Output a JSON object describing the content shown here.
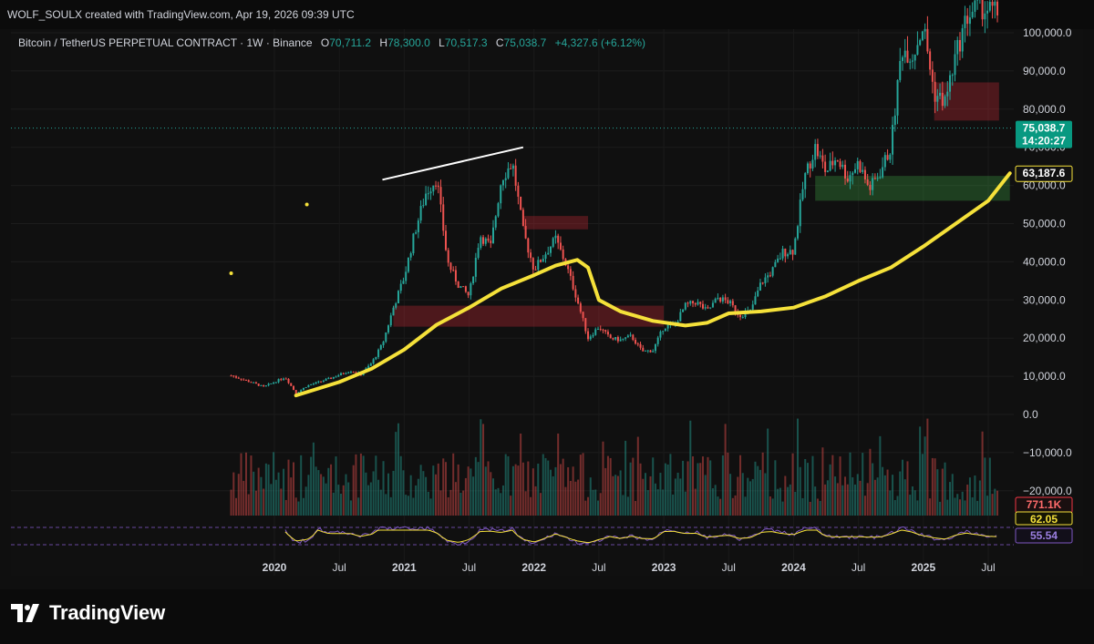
{
  "header": {
    "creator_line": "WOLF_SOULX created with TradingView.com, Apr 19, 2026 09:39 UTC"
  },
  "legend": {
    "symbol": "Bitcoin / TetherUS PERPETUAL CONTRACT · 1W · Binance",
    "open_label": "O",
    "open_value": "70,711.2",
    "high_label": "H",
    "high_value": "78,300.0",
    "low_label": "L",
    "low_value": "70,517.3",
    "close_label": "C",
    "close_value": "75,038.7",
    "change": "+4,327.6 (+6.12%)"
  },
  "price_badges": {
    "last_price": "75,038.7",
    "countdown": "14:20:27",
    "ma_value": "63,187.6",
    "volume": "771.1K",
    "rsi_ma": "62.05",
    "rsi": "55.54"
  },
  "colors": {
    "up": "#26a69a",
    "down": "#ef5350",
    "ma": "#f5e13a",
    "rsi": "#7e57c2",
    "last_price_badge": "#089981",
    "volume_badge": "#f23645"
  },
  "brand": {
    "name": "TradingView"
  },
  "chart_data": {
    "type": "candlestick",
    "timeframe": "1W",
    "y_tick_labels": [
      "100,000.0",
      "90,000.0",
      "80,000.0",
      "70,000.0",
      "60,000.0",
      "50,000.0",
      "40,000.0",
      "30,000.0",
      "20,000.0",
      "10,000.0",
      "0.0",
      "−10,000.0",
      "−20,000.0"
    ],
    "y_ticks": [
      100000,
      90000,
      80000,
      70000,
      60000,
      50000,
      40000,
      30000,
      20000,
      10000,
      0,
      -10000,
      -20000
    ],
    "ylim": [
      -23000,
      105000
    ],
    "x_tick_labels": [
      "2020",
      "Jul",
      "2021",
      "Jul",
      "2022",
      "Jul",
      "2023",
      "Jul",
      "2024",
      "Jul",
      "2025",
      "Jul"
    ],
    "x_ticks": [
      "2020-01",
      "2020-07",
      "2021-01",
      "2021-07",
      "2022-01",
      "2022-07",
      "2023-01",
      "2023-07",
      "2024-01",
      "2024-07",
      "2025-01",
      "2025-07"
    ],
    "price_path": [
      [
        "2019-09",
        10200
      ],
      [
        "2019-11",
        8300
      ],
      [
        "2019-12",
        7200
      ],
      [
        "2020-02",
        9800
      ],
      [
        "2020-03",
        5500
      ],
      [
        "2020-04",
        7500
      ],
      [
        "2020-06",
        9300
      ],
      [
        "2020-08",
        11500
      ],
      [
        "2020-09",
        10500
      ],
      [
        "2020-10",
        13500
      ],
      [
        "2020-11",
        18500
      ],
      [
        "2020-12",
        28000
      ],
      [
        "2021-01",
        36000
      ],
      [
        "2021-02",
        48000
      ],
      [
        "2021-03",
        58000
      ],
      [
        "2021-04",
        62000
      ],
      [
        "2021-05",
        40000
      ],
      [
        "2021-06",
        34000
      ],
      [
        "2021-07",
        31000
      ],
      [
        "2021-08",
        47000
      ],
      [
        "2021-09",
        44000
      ],
      [
        "2021-10",
        62000
      ],
      [
        "2021-11",
        66000
      ],
      [
        "2021-12",
        48000
      ],
      [
        "2022-01",
        38000
      ],
      [
        "2022-02",
        42000
      ],
      [
        "2022-03",
        46000
      ],
      [
        "2022-04",
        39000
      ],
      [
        "2022-05",
        30000
      ],
      [
        "2022-06",
        20000
      ],
      [
        "2022-07",
        23000
      ],
      [
        "2022-08",
        20000
      ],
      [
        "2022-09",
        19500
      ],
      [
        "2022-10",
        20500
      ],
      [
        "2022-11",
        16500
      ],
      [
        "2022-12",
        16800
      ],
      [
        "2023-01",
        23000
      ],
      [
        "2023-02",
        23500
      ],
      [
        "2023-03",
        28500
      ],
      [
        "2023-04",
        29500
      ],
      [
        "2023-05",
        27000
      ],
      [
        "2023-06",
        30500
      ],
      [
        "2023-07",
        29500
      ],
      [
        "2023-08",
        26000
      ],
      [
        "2023-09",
        27000
      ],
      [
        "2023-10",
        34500
      ],
      [
        "2023-11",
        37500
      ],
      [
        "2023-12",
        42500
      ],
      [
        "2024-01",
        43000
      ],
      [
        "2024-02",
        62000
      ],
      [
        "2024-03",
        70000
      ],
      [
        "2024-04",
        63500
      ],
      [
        "2024-05",
        67500
      ],
      [
        "2024-06",
        62000
      ],
      [
        "2024-07",
        66000
      ],
      [
        "2024-08",
        59000
      ],
      [
        "2024-09",
        63500
      ],
      [
        "2024-10",
        70000
      ],
      [
        "2024-11",
        96000
      ],
      [
        "2024-12",
        94000
      ],
      [
        "2025-01",
        102000
      ],
      [
        "2025-02",
        84000
      ],
      [
        "2025-03",
        82000
      ],
      [
        "2025-04",
        94000
      ],
      [
        "2025-05",
        104000
      ],
      [
        "2025-06",
        107000
      ],
      [
        "2025-08",
        105000
      ]
    ],
    "moving_average": [
      [
        "2020-03",
        5000
      ],
      [
        "2020-07",
        8500
      ],
      [
        "2020-10",
        12000
      ],
      [
        "2021-01",
        17000
      ],
      [
        "2021-04",
        23500
      ],
      [
        "2021-07",
        28000
      ],
      [
        "2021-10",
        33000
      ],
      [
        "2022-01",
        36500
      ],
      [
        "2022-03",
        39000
      ],
      [
        "2022-05",
        40500
      ],
      [
        "2022-06",
        38500
      ],
      [
        "2022-07",
        30000
      ],
      [
        "2022-09",
        27000
      ],
      [
        "2022-12",
        24500
      ],
      [
        "2023-03",
        23300
      ],
      [
        "2023-05",
        24000
      ],
      [
        "2023-07",
        26500
      ],
      [
        "2023-10",
        27000
      ],
      [
        "2024-01",
        28000
      ],
      [
        "2024-04",
        31000
      ],
      [
        "2024-07",
        35000
      ],
      [
        "2024-10",
        38500
      ],
      [
        "2025-01",
        44000
      ],
      [
        "2025-04",
        50000
      ],
      [
        "2025-07",
        56000
      ],
      [
        "2025-09",
        63187.6
      ]
    ],
    "zones": [
      {
        "x0": "2020-12",
        "x1": "2023-01",
        "y0": 23000,
        "y1": 28500,
        "color": "red"
      },
      {
        "x0": "2021-12",
        "x1": "2022-06",
        "y0": 48500,
        "y1": 52000,
        "color": "red"
      },
      {
        "x0": "2025-02",
        "x1": "2025-08",
        "y0": 77000,
        "y1": 87000,
        "color": "red"
      },
      {
        "x0": "2024-03",
        "x1": "2025-09",
        "y0": 56000,
        "y1": 62500,
        "color": "green"
      }
    ],
    "trendline": [
      [
        "2020-12",
        61500
      ],
      [
        "2021-12",
        70000
      ]
    ],
    "dots": [
      [
        "2020-04",
        55000
      ],
      [
        "2019-09",
        37000
      ]
    ],
    "last_price": 75038.7,
    "ma_last": 63187.6
  }
}
